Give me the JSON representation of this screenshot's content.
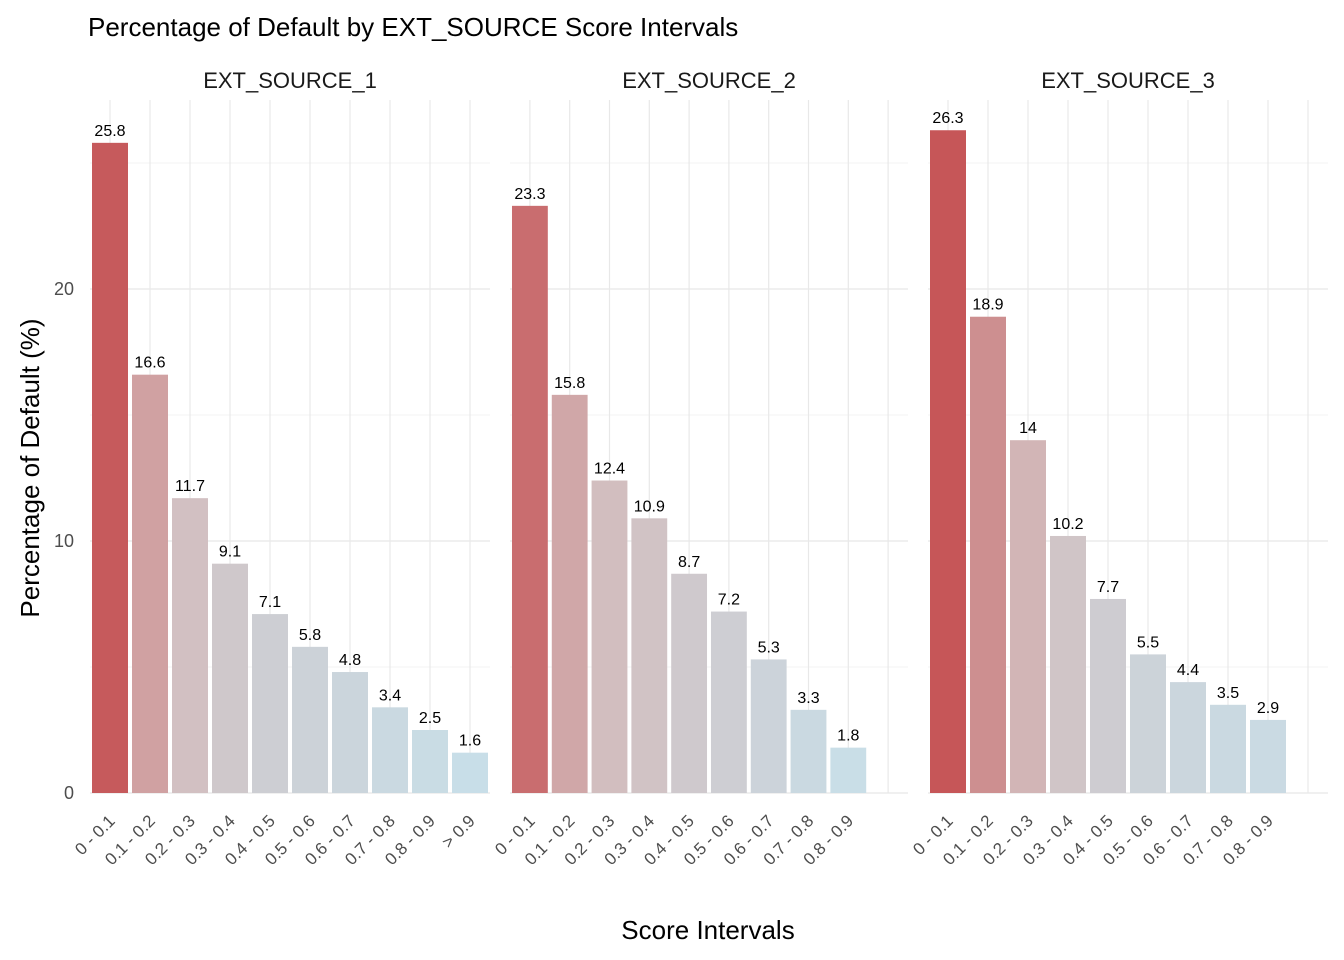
{
  "chart_data": {
    "type": "bar",
    "title": "Percentage of Default by EXT_SOURCE Score Intervals",
    "xlabel": "Score Intervals",
    "ylabel": "Percentage of Default (%)",
    "ylim": [
      0,
      27.5
    ],
    "yticks": [
      "0",
      "10",
      "20"
    ],
    "grid": true,
    "legend": "none",
    "color_low": "#c7e3ee",
    "color_mid": "#d3bcbc",
    "color_high": "#c65658",
    "panels": [
      {
        "name": "EXT_SOURCE_1",
        "categories": [
          "0 - 0.1",
          "0.1 - 0.2",
          "0.2 - 0.3",
          "0.3 - 0.4",
          "0.4 - 0.5",
          "0.5 - 0.6",
          "0.6 - 0.7",
          "0.7 - 0.8",
          "0.8 - 0.9",
          "> 0.9"
        ],
        "values": [
          25.8,
          16.6,
          11.7,
          9.1,
          7.1,
          5.8,
          4.8,
          3.4,
          2.5,
          1.6
        ],
        "labels": [
          "25.8",
          "16.6",
          "11.7",
          "9.1",
          "7.1",
          "5.8",
          "4.8",
          "3.4",
          "2.5",
          "1.6"
        ]
      },
      {
        "name": "EXT_SOURCE_2",
        "categories": [
          "0 - 0.1",
          "0.1 - 0.2",
          "0.2 - 0.3",
          "0.3 - 0.4",
          "0.4 - 0.5",
          "0.5 - 0.6",
          "0.6 - 0.7",
          "0.7 - 0.8",
          "0.8 - 0.9"
        ],
        "values": [
          23.3,
          15.8,
          12.4,
          10.9,
          8.7,
          7.2,
          5.3,
          3.3,
          1.8
        ],
        "labels": [
          "23.3",
          "15.8",
          "12.4",
          "10.9",
          "8.7",
          "7.2",
          "5.3",
          "3.3",
          "1.8"
        ]
      },
      {
        "name": "EXT_SOURCE_3",
        "categories": [
          "0 - 0.1",
          "0.1 - 0.2",
          "0.2 - 0.3",
          "0.3 - 0.4",
          "0.4 - 0.5",
          "0.5 - 0.6",
          "0.6 - 0.7",
          "0.7 - 0.8",
          "0.8 - 0.9"
        ],
        "values": [
          26.3,
          18.9,
          14,
          10.2,
          7.7,
          5.5,
          4.4,
          3.5,
          2.9
        ],
        "labels": [
          "26.3",
          "18.9",
          "14",
          "10.2",
          "7.7",
          "5.5",
          "4.4",
          "3.5",
          "2.9"
        ]
      }
    ]
  }
}
